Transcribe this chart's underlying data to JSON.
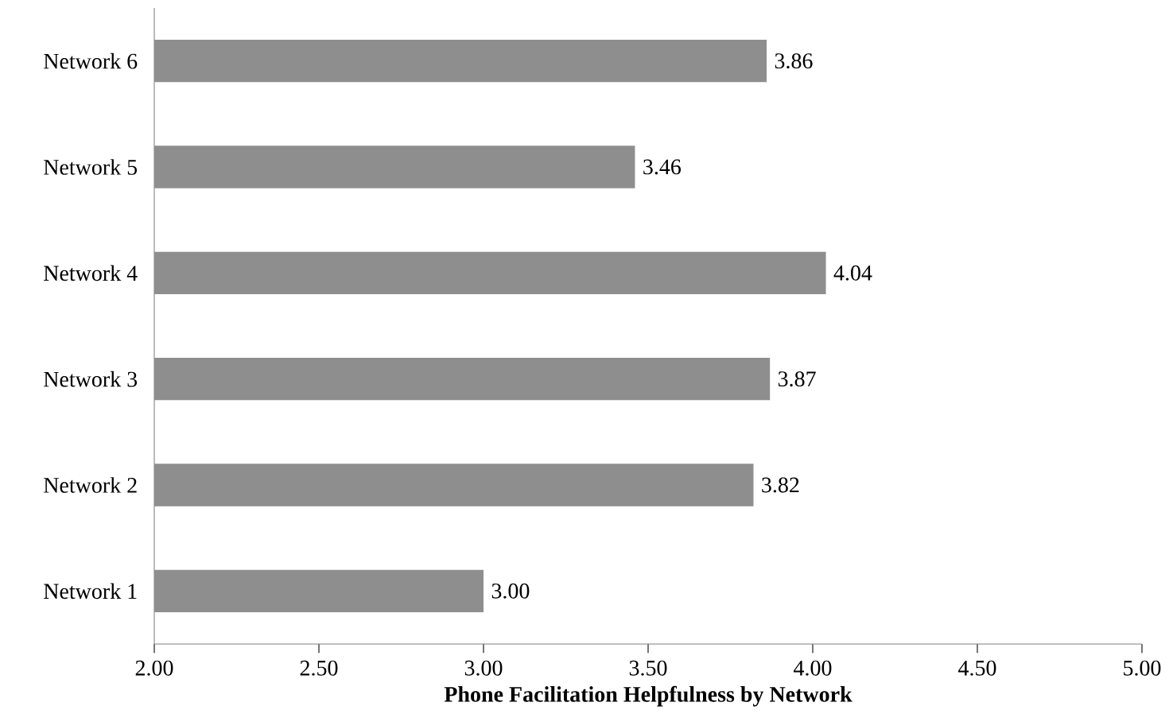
{
  "chart_data": {
    "type": "bar",
    "orientation": "horizontal",
    "xlabel": "Phone Facilitation Helpfulness by Network",
    "categories": [
      "Network 6",
      "Network 5",
      "Network 4",
      "Network 3",
      "Network 2",
      "Network 1"
    ],
    "values": [
      3.86,
      3.46,
      4.04,
      3.87,
      3.82,
      3.0
    ],
    "value_labels": [
      "3.86",
      "3.46",
      "4.04",
      "3.87",
      "3.82",
      "3.00"
    ],
    "color": "#8e8e8e",
    "xlim": [
      2,
      5
    ],
    "xticks": [
      {
        "value": 2,
        "label": "2.00"
      },
      {
        "value": 2.5,
        "label": "2.50"
      },
      {
        "value": 3,
        "label": "3.00"
      },
      {
        "value": 3.5,
        "label": "3.50"
      },
      {
        "value": 4,
        "label": "4.00"
      },
      {
        "value": 4.5,
        "label": "4.50"
      },
      {
        "value": 5,
        "label": "5.00"
      }
    ]
  }
}
